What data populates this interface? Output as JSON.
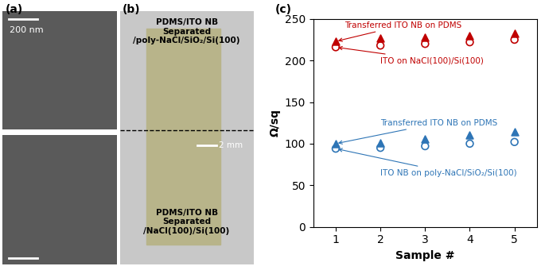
{
  "chart_data": {
    "type": "scatter",
    "title": "(c)",
    "x_label": "Sample #",
    "y_label": "Ω/sq",
    "x": [
      1,
      2,
      3,
      4,
      5
    ],
    "xlim": [
      0.5,
      5.5
    ],
    "xticks": [
      1,
      2,
      3,
      4,
      5
    ],
    "ylim": [
      0,
      250
    ],
    "yticks": [
      0,
      50,
      100,
      150,
      200,
      250
    ],
    "series": [
      {
        "name": "Transferred ITO NB on PDMS",
        "color": "#c00000",
        "marker": "triangle",
        "values": [
          223,
          227,
          228,
          230,
          233
        ]
      },
      {
        "name": "ITO on NaCl(100)/Si(100)",
        "color": "#c00000",
        "marker": "circle",
        "values": [
          216,
          218,
          220,
          222,
          225
        ]
      },
      {
        "name": "Transferred ITO NB on PDMS",
        "color": "#2e75b6",
        "marker": "triangle",
        "values": [
          100,
          101,
          106,
          110,
          114
        ]
      },
      {
        "name": "ITO NB on poly-NaCl/SiO₂/Si(100)",
        "color": "#2e75b6",
        "marker": "circle",
        "values": [
          94,
          95,
          97,
          100,
          102
        ]
      }
    ]
  },
  "panels": {
    "a": {
      "label": "(a)",
      "scale_bar": "200 nm"
    },
    "b": {
      "label": "(b)",
      "top_text": "PDMS/ITO NB\nSeparated\n/poly-NaCl/SiO₂/Si(100)",
      "bottom_text": "PDMS/ITO NB\nSeparated\n/NaCl(100)/Si(100)",
      "scale_bar": "2 mm"
    }
  }
}
